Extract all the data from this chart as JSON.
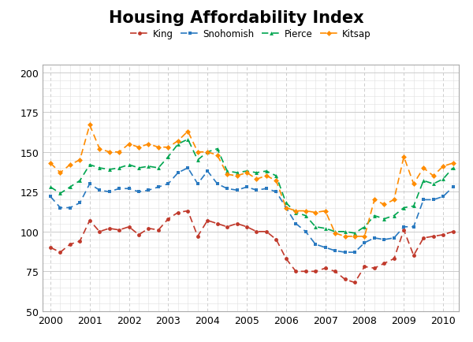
{
  "title": "Housing Affordability Index",
  "legend_labels": [
    "King",
    "Snohomish",
    "Pierce",
    "Kitsap"
  ],
  "colors": [
    "#C0392B",
    "#2979C0",
    "#00A550",
    "#FF8C00"
  ],
  "markers": [
    "o",
    "s",
    "^",
    "D"
  ],
  "xlim": [
    1999.8,
    2010.4
  ],
  "ylim": [
    50,
    205
  ],
  "yticks": [
    50,
    75,
    100,
    125,
    150,
    175,
    200
  ],
  "xticks": [
    2000,
    2001,
    2002,
    2003,
    2004,
    2005,
    2006,
    2007,
    2008,
    2009,
    2010
  ],
  "King": [
    90,
    87,
    92,
    94,
    107,
    100,
    102,
    101,
    103,
    98,
    102,
    101,
    108,
    112,
    113,
    97,
    107,
    105,
    103,
    105,
    103,
    100,
    100,
    95,
    83,
    75,
    75,
    75,
    77,
    75,
    70,
    68,
    78,
    77,
    80,
    83,
    101,
    85,
    96,
    97,
    98,
    100
  ],
  "Snohomish": [
    122,
    115,
    115,
    118,
    130,
    126,
    125,
    127,
    127,
    125,
    126,
    128,
    130,
    137,
    140,
    130,
    138,
    130,
    127,
    126,
    128,
    126,
    127,
    125,
    115,
    105,
    100,
    92,
    90,
    88,
    87,
    87,
    93,
    96,
    95,
    96,
    103,
    103,
    120,
    120,
    122,
    128
  ],
  "Pierce": [
    128,
    124,
    128,
    132,
    142,
    140,
    139,
    140,
    142,
    140,
    141,
    140,
    147,
    155,
    158,
    145,
    150,
    152,
    138,
    137,
    138,
    137,
    138,
    135,
    118,
    112,
    110,
    103,
    102,
    100,
    100,
    99,
    103,
    110,
    108,
    110,
    115,
    116,
    132,
    130,
    133,
    140
  ],
  "Kitsap": [
    143,
    137,
    142,
    145,
    167,
    152,
    150,
    150,
    155,
    153,
    155,
    153,
    153,
    157,
    163,
    150,
    150,
    148,
    136,
    135,
    137,
    133,
    135,
    132,
    115,
    113,
    113,
    112,
    113,
    99,
    97,
    97,
    97,
    120,
    117,
    120,
    147,
    130,
    140,
    135,
    141,
    143
  ],
  "background_color": "#FFFFFF",
  "grid_color": "#CCCCCC"
}
